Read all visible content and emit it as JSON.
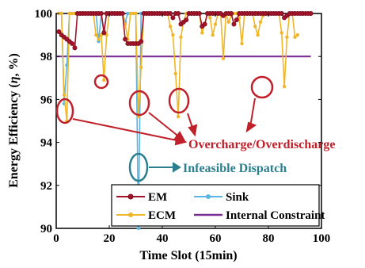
{
  "chart_data": {
    "type": "line",
    "xlabel": "Time Slot (15min)",
    "ylabel": "Energy Efficiency (η, %)",
    "ylabel_parts": [
      "Energy Efficiency (",
      "η",
      ", %)"
    ],
    "xlim": [
      0,
      100
    ],
    "ylim": [
      90,
      100
    ],
    "xticks": [
      "0",
      "20",
      "40",
      "60",
      "80",
      "100"
    ],
    "yticks": [
      "90",
      "92",
      "94",
      "96",
      "98",
      "100"
    ],
    "legend_position": "lower-right",
    "legend": [
      "EM",
      "Sink",
      "ECM",
      "Internal Constraint"
    ],
    "annotations": [
      "Overcharge/Overdischarge",
      "Infeasible Dispatch"
    ],
    "colors": {
      "EM": "#a3142a",
      "Sink": "#5ab4e5",
      "ECM": "#f0b62a",
      "Internal Constraint": "#7b2e96",
      "annot_red": "#c0202a",
      "annot_teal": "#2a7f8f"
    },
    "series": [
      {
        "name": "EM",
        "x": [
          1,
          2,
          3,
          4,
          5,
          6,
          7,
          8,
          9,
          10,
          11,
          12,
          13,
          14,
          15,
          16,
          17,
          18,
          19,
          20,
          21,
          22,
          23,
          24,
          25,
          26,
          27,
          28,
          29,
          30,
          31,
          32,
          33,
          34,
          35,
          36,
          37,
          38,
          39,
          40,
          41,
          42,
          43,
          44,
          45,
          46,
          47,
          48,
          49,
          50,
          51,
          52,
          53,
          54,
          55,
          56,
          57,
          58,
          59,
          60,
          61,
          62,
          63,
          64,
          65,
          66,
          67,
          68,
          69,
          70,
          71,
          72,
          73,
          74,
          75,
          76,
          77,
          78,
          79,
          80,
          81,
          82,
          83,
          84,
          85,
          86,
          87,
          88,
          89,
          90,
          91,
          92,
          93,
          94,
          95,
          96
        ],
        "y": [
          99.15,
          99.0,
          98.9,
          98.8,
          98.7,
          98.6,
          98.4,
          100,
          100,
          100,
          100,
          100,
          100,
          100,
          100,
          100,
          100,
          99.1,
          100,
          100,
          100,
          100,
          100,
          100,
          100,
          98.8,
          98.6,
          98.6,
          98.6,
          98.6,
          98.6,
          98.7,
          100,
          100,
          100,
          100,
          100,
          100,
          100,
          100,
          100,
          100,
          100,
          99.8,
          100,
          100,
          99.5,
          99.6,
          99.7,
          100,
          100,
          100,
          100,
          100,
          99.4,
          99.5,
          100,
          100,
          100,
          100,
          100,
          100,
          99.9,
          100,
          100,
          100,
          99.5,
          99.7,
          100,
          100,
          100,
          100,
          100,
          100,
          100,
          100,
          100,
          100,
          100,
          100,
          100,
          100,
          100,
          100,
          100,
          99.8,
          99.9,
          100,
          100,
          100,
          100,
          100,
          100,
          100,
          100,
          100
        ]
      },
      {
        "name": "Sink",
        "x": [
          1,
          2,
          3,
          4,
          5,
          6,
          7,
          8,
          9,
          10,
          11,
          12,
          13,
          14,
          15,
          16,
          17,
          18,
          19,
          20,
          21,
          22,
          23,
          24,
          25,
          26,
          27,
          28,
          29,
          30,
          31,
          32,
          33,
          34,
          35,
          36
        ],
        "y": [
          100,
          100,
          95.8,
          97.6,
          100,
          100,
          100,
          100,
          100,
          100,
          100,
          100,
          100,
          100,
          100,
          98.7,
          100,
          99.2,
          100,
          100,
          100,
          100,
          100,
          100,
          100,
          99.6,
          100,
          100,
          100,
          100,
          90,
          100,
          100,
          100,
          100,
          100
        ]
      },
      {
        "name": "ECM",
        "x": [
          1,
          2,
          3,
          4,
          5,
          6,
          7,
          8,
          9,
          10,
          11,
          12,
          13,
          14,
          15,
          16,
          17,
          18,
          19,
          20,
          21,
          22,
          23,
          24,
          25,
          26,
          27,
          28,
          29,
          30,
          31,
          32,
          33,
          34,
          35,
          36,
          37,
          38,
          39,
          40,
          41,
          42,
          43,
          44,
          45,
          46,
          47,
          48,
          49,
          50,
          51,
          52,
          53,
          54,
          55,
          56,
          57,
          58,
          59,
          60,
          61,
          62,
          63,
          64,
          65,
          66,
          67,
          68,
          69,
          70,
          71,
          72,
          73,
          74,
          75,
          76,
          77,
          78,
          79,
          80,
          81,
          82,
          83,
          84,
          85,
          86,
          87,
          88,
          89,
          90,
          91
        ],
        "y": [
          100,
          100,
          96.2,
          95.0,
          100,
          100,
          100,
          100,
          100,
          100,
          100,
          100,
          100,
          100,
          99.0,
          98.8,
          99.0,
          96.9,
          99.0,
          100,
          100,
          100,
          100,
          100,
          100,
          99.5,
          98.8,
          100,
          100,
          100,
          95.2,
          97.5,
          100,
          100,
          100,
          100,
          100,
          100,
          100,
          100,
          100,
          100,
          99.4,
          99.0,
          97.2,
          95.2,
          98.9,
          99.6,
          100,
          100,
          100,
          100,
          100,
          100,
          99.1,
          99.5,
          100,
          99.8,
          99.0,
          99.5,
          100,
          100,
          97.9,
          100,
          99.6,
          99.9,
          100,
          100,
          99.8,
          98.6,
          100,
          100,
          100,
          100,
          99.4,
          99.0,
          99.6,
          99.9,
          100,
          100,
          100,
          100,
          100,
          100,
          99.1,
          96.6,
          98.9,
          100,
          100,
          98.9,
          99.0
        ]
      },
      {
        "name": "Internal Constraint",
        "x": [
          0,
          96
        ],
        "y": [
          98,
          98
        ]
      }
    ]
  }
}
